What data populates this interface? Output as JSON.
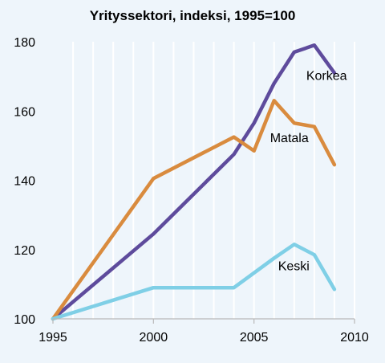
{
  "chart_data": {
    "type": "line",
    "title": "Yrityssektori, indeksi, 1995=100",
    "xlabel": "",
    "ylabel": "",
    "xlim": [
      1995,
      2010
    ],
    "ylim": [
      100,
      180
    ],
    "x_ticks": [
      1995,
      2000,
      2005,
      2010
    ],
    "y_ticks": [
      100,
      120,
      140,
      160,
      180
    ],
    "grid": "vertical",
    "series": [
      {
        "name": "Korkea",
        "color": "#5e4b9c",
        "points": [
          [
            1995,
            100
          ],
          [
            2000,
            124.5
          ],
          [
            2004,
            147.5
          ],
          [
            2005,
            156.5
          ],
          [
            2006,
            168
          ],
          [
            2007,
            177
          ],
          [
            2008,
            179
          ],
          [
            2009,
            171
          ]
        ],
        "label_at": [
          2007.6,
          169
        ]
      },
      {
        "name": "Matala",
        "color": "#d98b3e",
        "points": [
          [
            1995,
            100
          ],
          [
            2000,
            140.5
          ],
          [
            2004,
            152.5
          ],
          [
            2005,
            148.5
          ],
          [
            2006,
            163
          ],
          [
            2007,
            156.5
          ],
          [
            2008,
            155.5
          ],
          [
            2009,
            144.5
          ]
        ],
        "label_at": [
          2005.8,
          151
        ]
      },
      {
        "name": "Keski",
        "color": "#7fcfe6",
        "points": [
          [
            1995,
            100
          ],
          [
            2000,
            109
          ],
          [
            2004,
            109
          ],
          [
            2006,
            117.5
          ],
          [
            2007,
            121.5
          ],
          [
            2008,
            118.5
          ],
          [
            2009,
            108.5
          ]
        ],
        "label_at": [
          2006.2,
          114
        ]
      }
    ]
  }
}
